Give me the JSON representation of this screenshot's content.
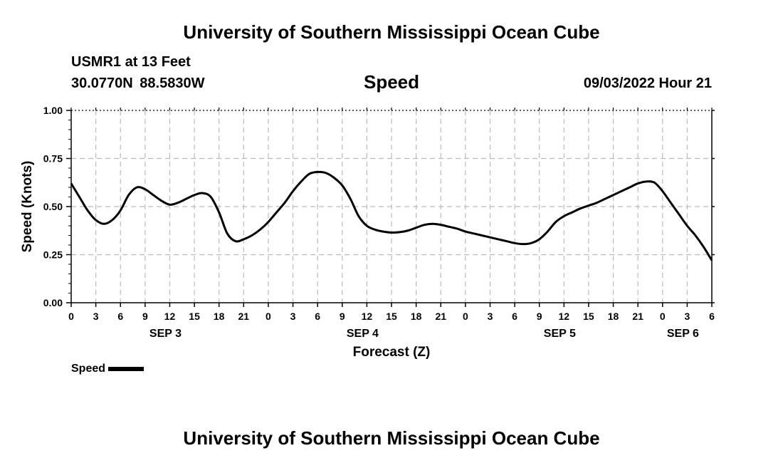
{
  "header": {
    "title": "University of Southern Mississippi Ocean Cube",
    "station": "USMR1 at 13 Feet",
    "coords": "30.0770N  88.5830W",
    "variable": "Speed",
    "datetime": "09/03/2022 Hour 21"
  },
  "footer": {
    "title": "University of Southern Mississippi Ocean Cube"
  },
  "legend": {
    "label": "Speed"
  },
  "chart_data": {
    "type": "line",
    "title": "Speed",
    "xlabel": "Forecast (Z)",
    "ylabel": "Speed (Knots)",
    "ylim": [
      0,
      1
    ],
    "xlim": [
      0,
      78
    ],
    "x_unit": "hours from SEP 3 00Z",
    "grid": true,
    "y_ticks": [
      0,
      0.25,
      0.5,
      0.75,
      1
    ],
    "y_tick_labels": [
      "0.00",
      "0.25",
      "0.50",
      "0.75",
      "1.00"
    ],
    "x_ticks": [
      0,
      3,
      6,
      9,
      12,
      15,
      18,
      21,
      24,
      27,
      30,
      33,
      36,
      39,
      42,
      45,
      48,
      51,
      54,
      57,
      60,
      63,
      66,
      69,
      72,
      75,
      78
    ],
    "x_tick_labels": [
      "0",
      "3",
      "6",
      "9",
      "12",
      "15",
      "18",
      "21",
      "0",
      "3",
      "6",
      "9",
      "12",
      "15",
      "18",
      "21",
      "0",
      "3",
      "6",
      "9",
      "12",
      "15",
      "18",
      "21",
      "0",
      "3",
      "6"
    ],
    "day_labels": [
      {
        "label": "SEP 3",
        "hour": 12
      },
      {
        "label": "SEP 4",
        "hour": 36
      },
      {
        "label": "SEP 5",
        "hour": 60
      },
      {
        "label": "SEP 6",
        "hour": 75
      }
    ],
    "series": [
      {
        "name": "Speed",
        "color": "#000000",
        "x": [
          0,
          1,
          2,
          3,
          4,
          5,
          6,
          7,
          8,
          9,
          10,
          11,
          12,
          13,
          14,
          15,
          16,
          17,
          18,
          19,
          20,
          21,
          22,
          23,
          24,
          25,
          26,
          27,
          28,
          29,
          30,
          31,
          32,
          33,
          34,
          35,
          36,
          37,
          38,
          39,
          40,
          41,
          42,
          43,
          44,
          45,
          46,
          47,
          48,
          49,
          50,
          51,
          52,
          53,
          54,
          55,
          56,
          57,
          58,
          59,
          60,
          61,
          62,
          63,
          64,
          65,
          66,
          67,
          68,
          69,
          70,
          71,
          72,
          73,
          74,
          75,
          76,
          77,
          78
        ],
        "values": [
          0.62,
          0.55,
          0.48,
          0.43,
          0.41,
          0.43,
          0.48,
          0.56,
          0.6,
          0.59,
          0.56,
          0.53,
          0.51,
          0.52,
          0.54,
          0.56,
          0.57,
          0.55,
          0.47,
          0.36,
          0.32,
          0.33,
          0.35,
          0.38,
          0.42,
          0.47,
          0.52,
          0.58,
          0.63,
          0.67,
          0.68,
          0.675,
          0.65,
          0.61,
          0.54,
          0.45,
          0.4,
          0.38,
          0.37,
          0.365,
          0.367,
          0.375,
          0.39,
          0.405,
          0.41,
          0.405,
          0.395,
          0.385,
          0.37,
          0.36,
          0.35,
          0.34,
          0.33,
          0.32,
          0.31,
          0.305,
          0.31,
          0.33,
          0.37,
          0.42,
          0.45,
          0.47,
          0.49,
          0.505,
          0.52,
          0.54,
          0.56,
          0.58,
          0.6,
          0.62,
          0.63,
          0.625,
          0.58,
          0.52,
          0.46,
          0.4,
          0.35,
          0.29,
          0.22
        ]
      }
    ]
  }
}
